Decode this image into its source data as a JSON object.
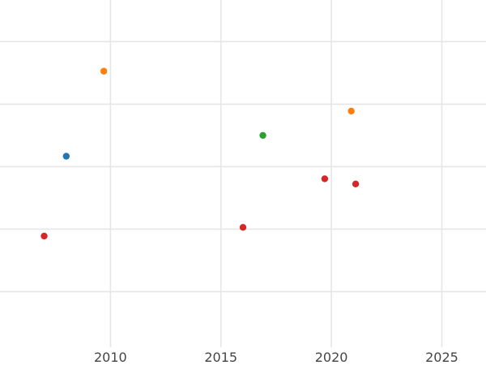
{
  "chart_data": {
    "type": "scatter",
    "title": "",
    "xlabel": "",
    "ylabel": "",
    "xlim": [
      2005,
      2027
    ],
    "ylim": [
      0,
      100
    ],
    "x_ticks": [
      2010,
      2015,
      2020,
      2025
    ],
    "x_tick_labels": [
      "2010",
      "2015",
      "2020",
      "2025"
    ],
    "y_gridlines": [
      16,
      34,
      52,
      70,
      88
    ],
    "grid": true,
    "legend": "none",
    "points": [
      {
        "x": 2007.0,
        "y": 32.0,
        "color": "#d62728"
      },
      {
        "x": 2008.0,
        "y": 55.0,
        "color": "#1f77b4"
      },
      {
        "x": 2009.7,
        "y": 79.5,
        "color": "#ff7f0e"
      },
      {
        "x": 2016.0,
        "y": 34.5,
        "color": "#d62728"
      },
      {
        "x": 2016.9,
        "y": 61.0,
        "color": "#2ca02c"
      },
      {
        "x": 2019.7,
        "y": 48.5,
        "color": "#d62728"
      },
      {
        "x": 2020.9,
        "y": 68.0,
        "color": "#ff7f0e"
      },
      {
        "x": 2021.1,
        "y": 47.0,
        "color": "#d62728"
      }
    ]
  }
}
